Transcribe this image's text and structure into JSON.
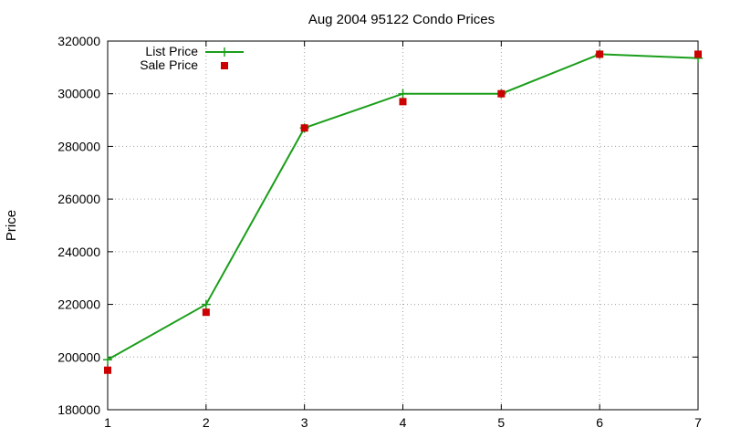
{
  "chart_data": {
    "type": "line",
    "title": "Aug 2004 95122 Condo Prices",
    "xlabel": "",
    "ylabel": "Price",
    "x": [
      1,
      2,
      3,
      4,
      5,
      6,
      7
    ],
    "xlim": [
      1,
      7
    ],
    "ylim": [
      180000,
      320000
    ],
    "x_ticks": [
      "1",
      "2",
      "3",
      "4",
      "5",
      "6",
      "7"
    ],
    "y_ticks": [
      "180000",
      "200000",
      "220000",
      "240000",
      "260000",
      "280000",
      "300000",
      "320000"
    ],
    "grid": true,
    "legend_position": "top-left",
    "series": [
      {
        "name": "List Price",
        "style": "line-with-plus-markers",
        "color": "#1a9e1a",
        "values": [
          199000,
          220000,
          287000,
          300000,
          300000,
          315000,
          313500
        ]
      },
      {
        "name": "Sale Price",
        "style": "square-markers",
        "color": "#cc0000",
        "values": [
          195000,
          217000,
          287000,
          297000,
          300000,
          315000,
          315000
        ]
      }
    ]
  }
}
